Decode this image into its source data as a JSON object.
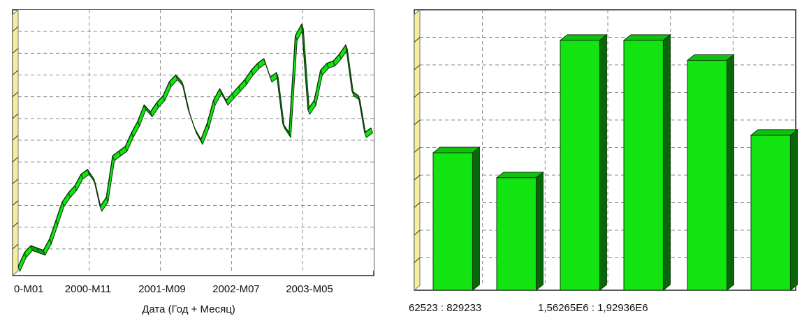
{
  "chart_data": [
    {
      "type": "line",
      "style": "3d-ribbon",
      "title": "",
      "xlabel": "Дата (Год + Месяц)",
      "ylabel": "",
      "x_tick_labels": [
        "0-M01",
        "2000-M11",
        "2001-M09",
        "2002-M07",
        "2003-M05"
      ],
      "grid": true,
      "series": [
        {
          "color": "#11e411",
          "values": [
            0,
            6,
            9,
            8,
            7,
            12,
            20,
            28,
            32,
            35,
            40,
            42,
            38,
            26,
            30,
            48,
            50,
            52,
            58,
            63,
            70,
            67,
            71,
            74,
            80,
            83,
            80,
            68,
            60,
            55,
            62,
            72,
            77,
            72,
            75,
            78,
            81,
            85,
            88,
            90,
            82,
            84,
            62,
            58,
            100,
            105,
            68,
            72,
            85,
            88,
            89,
            92,
            96,
            76,
            74,
            58,
            60
          ]
        }
      ],
      "ylim": [
        0,
        110
      ]
    },
    {
      "type": "bar",
      "style": "3d",
      "title": "",
      "categories": [
        "62523 : 829233",
        "",
        "",
        "1,56265E6 : 1,92936E6",
        "",
        ""
      ],
      "values": [
        55,
        45,
        100,
        100,
        92,
        62
      ],
      "ylim": [
        0,
        110
      ],
      "grid": true,
      "bar_color": "#11e411"
    }
  ]
}
